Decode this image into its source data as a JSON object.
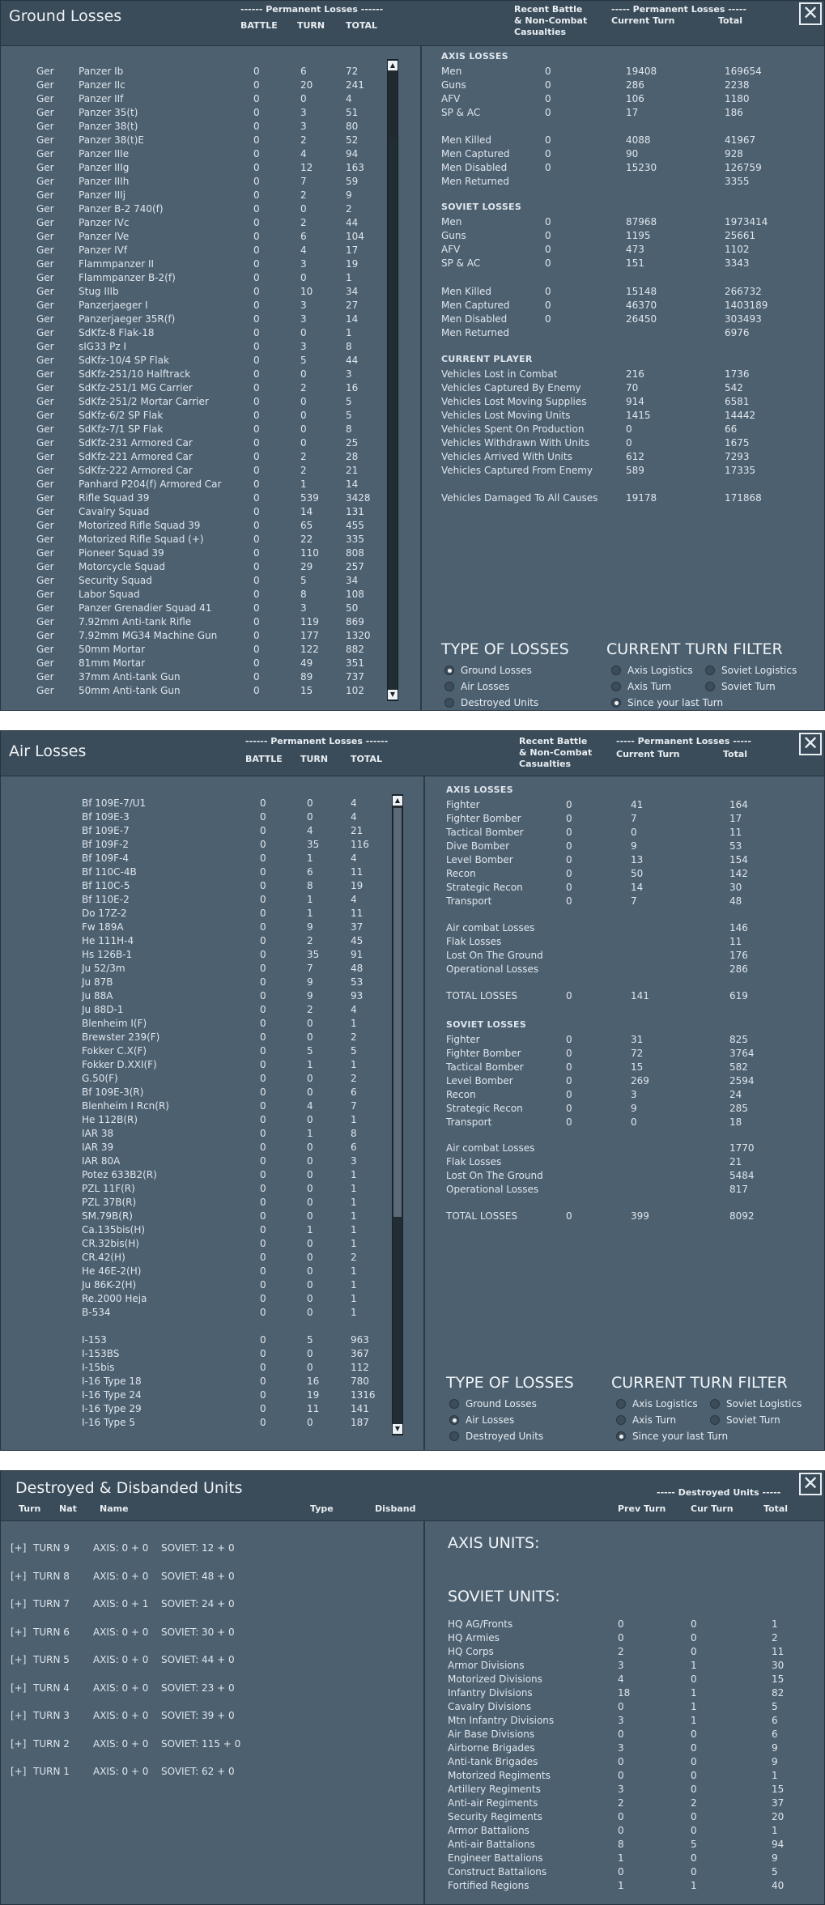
{
  "p1": {
    "title": "Ground Losses",
    "close": "✕",
    "hdr_perm": "------ Permanent Losses ------",
    "hdr_battle": "BATTLE",
    "hdr_turn": "TURN",
    "hdr_total": "TOTAL",
    "hdr_recent1": "Recent Battle",
    "hdr_recent2": "& Non-Combat",
    "hdr_recent3": "Casualties",
    "hdr_perm2": "----- Permanent Losses -----",
    "hdr_curturn": "Current Turn",
    "hdr_total2": "Total",
    "rows": [
      [
        "Ger",
        "Panzer Ib",
        "0",
        "6",
        "72"
      ],
      [
        "Ger",
        "Panzer IIc",
        "0",
        "20",
        "241"
      ],
      [
        "Ger",
        "Panzer IIf",
        "0",
        "0",
        "4"
      ],
      [
        "Ger",
        "Panzer 35(t)",
        "0",
        "3",
        "51"
      ],
      [
        "Ger",
        "Panzer 38(t)",
        "0",
        "3",
        "80"
      ],
      [
        "Ger",
        "Panzer 38(t)E",
        "0",
        "2",
        "52"
      ],
      [
        "Ger",
        "Panzer IIIe",
        "0",
        "4",
        "94"
      ],
      [
        "Ger",
        "Panzer IIIg",
        "0",
        "12",
        "163"
      ],
      [
        "Ger",
        "Panzer IIIh",
        "0",
        "7",
        "59"
      ],
      [
        "Ger",
        "Panzer IIIj",
        "0",
        "2",
        "9"
      ],
      [
        "Ger",
        "Panzer B-2 740(f)",
        "0",
        "0",
        "2"
      ],
      [
        "Ger",
        "Panzer IVc",
        "0",
        "2",
        "44"
      ],
      [
        "Ger",
        "Panzer IVe",
        "0",
        "6",
        "104"
      ],
      [
        "Ger",
        "Panzer IVf",
        "0",
        "4",
        "17"
      ],
      [
        "Ger",
        "Flammpanzer II",
        "0",
        "3",
        "19"
      ],
      [
        "Ger",
        "Flammpanzer B-2(f)",
        "0",
        "0",
        "1"
      ],
      [
        "Ger",
        "Stug IIIb",
        "0",
        "10",
        "34"
      ],
      [
        "Ger",
        "Panzerjaeger I",
        "0",
        "3",
        "27"
      ],
      [
        "Ger",
        "Panzerjaeger 35R(f)",
        "0",
        "3",
        "14"
      ],
      [
        "Ger",
        "SdKfz-8 Flak-18",
        "0",
        "0",
        "1"
      ],
      [
        "Ger",
        "sIG33 Pz I",
        "0",
        "3",
        "8"
      ],
      [
        "Ger",
        "SdKfz-10/4 SP Flak",
        "0",
        "5",
        "44"
      ],
      [
        "Ger",
        "SdKfz-251/10 Halftrack",
        "0",
        "0",
        "3"
      ],
      [
        "Ger",
        "SdKfz-251/1 MG Carrier",
        "0",
        "2",
        "16"
      ],
      [
        "Ger",
        "SdKfz-251/2 Mortar Carrier",
        "0",
        "0",
        "5"
      ],
      [
        "Ger",
        "SdKfz-6/2 SP Flak",
        "0",
        "0",
        "5"
      ],
      [
        "Ger",
        "SdKfz-7/1 SP Flak",
        "0",
        "0",
        "8"
      ],
      [
        "Ger",
        "SdKfz-231 Armored Car",
        "0",
        "0",
        "25"
      ],
      [
        "Ger",
        "SdKfz-221 Armored Car",
        "0",
        "2",
        "28"
      ],
      [
        "Ger",
        "SdKfz-222 Armored Car",
        "0",
        "2",
        "21"
      ],
      [
        "Ger",
        "Panhard P204(f) Armored Car",
        "0",
        "1",
        "14"
      ],
      [
        "Ger",
        "Rifle Squad 39",
        "0",
        "539",
        "3428"
      ],
      [
        "Ger",
        "Cavalry Squad",
        "0",
        "14",
        "131"
      ],
      [
        "Ger",
        "Motorized Rifle Squad 39",
        "0",
        "65",
        "455"
      ],
      [
        "Ger",
        "Motorized Rifle Squad (+)",
        "0",
        "22",
        "335"
      ],
      [
        "Ger",
        "Pioneer Squad 39",
        "0",
        "110",
        "808"
      ],
      [
        "Ger",
        "Motorcycle Squad",
        "0",
        "29",
        "257"
      ],
      [
        "Ger",
        "Security Squad",
        "0",
        "5",
        "34"
      ],
      [
        "Ger",
        "Labor Squad",
        "0",
        "8",
        "108"
      ],
      [
        "Ger",
        "Panzer Grenadier Squad 41",
        "0",
        "3",
        "50"
      ],
      [
        "Ger",
        "7.92mm Anti-tank Rifle",
        "0",
        "119",
        "869"
      ],
      [
        "Ger",
        "7.92mm MG34 Machine Gun",
        "0",
        "177",
        "1320"
      ],
      [
        "Ger",
        "50mm Mortar",
        "0",
        "122",
        "882"
      ],
      [
        "Ger",
        "81mm Mortar",
        "0",
        "49",
        "351"
      ],
      [
        "Ger",
        "37mm Anti-tank Gun",
        "0",
        "89",
        "737"
      ],
      [
        "Ger",
        "50mm Anti-tank Gun",
        "0",
        "15",
        "102"
      ]
    ],
    "axis_title": "AXIS LOSSES",
    "axis_rows": [
      [
        "Men",
        "0",
        "19408",
        "169654"
      ],
      [
        "Guns",
        "0",
        "286",
        "2238"
      ],
      [
        "AFV",
        "0",
        "106",
        "1180"
      ],
      [
        "SP & AC",
        "0",
        "17",
        "186"
      ]
    ],
    "axis_rows2": [
      [
        "Men Killed",
        "0",
        "4088",
        "41967"
      ],
      [
        "Men Captured",
        "0",
        "90",
        "928"
      ],
      [
        "Men Disabled",
        "0",
        "15230",
        "126759"
      ],
      [
        "Men Returned",
        "",
        "",
        "3355"
      ]
    ],
    "sov_title": "SOVIET LOSSES",
    "sov_rows": [
      [
        "Men",
        "0",
        "87968",
        "1973414"
      ],
      [
        "Guns",
        "0",
        "1195",
        "25661"
      ],
      [
        "AFV",
        "0",
        "473",
        "1102"
      ],
      [
        "SP & AC",
        "0",
        "151",
        "3343"
      ]
    ],
    "sov_rows2": [
      [
        "Men Killed",
        "0",
        "15148",
        "266732"
      ],
      [
        "Men Captured",
        "0",
        "46370",
        "1403189"
      ],
      [
        "Men Disabled",
        "0",
        "26450",
        "303493"
      ],
      [
        "Men Returned",
        "",
        "",
        "6976"
      ]
    ],
    "cp_title": "CURRENT PLAYER",
    "cp_rows": [
      [
        "Vehicles Lost in Combat",
        "216",
        "1736"
      ],
      [
        "Vehicles Captured By Enemy",
        "70",
        "542"
      ],
      [
        "Vehicles Lost Moving Supplies",
        "914",
        "6581"
      ],
      [
        "Vehicles Lost Moving Units",
        "1415",
        "14442"
      ],
      [
        "Vehicles Spent On Production",
        "0",
        "66"
      ],
      [
        "Vehicles Withdrawn With Units",
        "0",
        "1675"
      ],
      [
        "Vehicles Arrived With Units",
        "612",
        "7293"
      ],
      [
        "Vehicles Captured From Enemy",
        "589",
        "17335"
      ]
    ],
    "cp_dmg": [
      "Vehicles Damaged To All Causes",
      "19178",
      "171868"
    ],
    "tol": "TYPE OF LOSSES",
    "ctf": "CURRENT TURN FILTER",
    "opts_l": [
      "Ground Losses",
      "Air Losses",
      "Destroyed Units"
    ],
    "opts_r": [
      "Axis Logistics",
      "Soviet Logistics",
      "Axis Turn",
      "Soviet Turn",
      "Since your last Turn"
    ]
  },
  "p2": {
    "title": "Air Losses",
    "close": "✕",
    "hdr_perm": "------ Permanent Losses ------",
    "hdr_battle": "BATTLE",
    "hdr_turn": "TURN",
    "hdr_total": "TOTAL",
    "hdr_recent1": "Recent Battle",
    "hdr_recent2": "& Non-Combat",
    "hdr_recent3": "Casualties",
    "hdr_perm2": "----- Permanent Losses -----",
    "hdr_curturn": "Current Turn",
    "hdr_total2": "Total",
    "rows": [
      [
        "Bf 109E-7/U1",
        "0",
        "0",
        "4"
      ],
      [
        "Bf 109E-3",
        "0",
        "0",
        "4"
      ],
      [
        "Bf 109E-7",
        "0",
        "4",
        "21"
      ],
      [
        "Bf 109F-2",
        "0",
        "35",
        "116"
      ],
      [
        "Bf 109F-4",
        "0",
        "1",
        "4"
      ],
      [
        "Bf 110C-4B",
        "0",
        "6",
        "11"
      ],
      [
        "Bf 110C-5",
        "0",
        "8",
        "19"
      ],
      [
        "Bf 110E-2",
        "0",
        "1",
        "4"
      ],
      [
        "Do 17Z-2",
        "0",
        "1",
        "11"
      ],
      [
        "Fw 189A",
        "0",
        "9",
        "37"
      ],
      [
        "He 111H-4",
        "0",
        "2",
        "45"
      ],
      [
        "Hs 126B-1",
        "0",
        "35",
        "91"
      ],
      [
        "Ju 52/3m",
        "0",
        "7",
        "48"
      ],
      [
        "Ju 87B",
        "0",
        "9",
        "53"
      ],
      [
        "Ju 88A",
        "0",
        "9",
        "93"
      ],
      [
        "Ju 88D-1",
        "0",
        "2",
        "4"
      ],
      [
        "Blenheim I(F)",
        "0",
        "0",
        "1"
      ],
      [
        "Brewster 239(F)",
        "0",
        "0",
        "2"
      ],
      [
        "Fokker C.X(F)",
        "0",
        "5",
        "5"
      ],
      [
        "Fokker D.XXI(F)",
        "0",
        "1",
        "1"
      ],
      [
        "G.50(F)",
        "0",
        "0",
        "2"
      ],
      [
        "Bf 109E-3(R)",
        "0",
        "0",
        "6"
      ],
      [
        "Blenheim I Rcn(R)",
        "0",
        "4",
        "7"
      ],
      [
        "He 112B(R)",
        "0",
        "0",
        "1"
      ],
      [
        "IAR 38",
        "0",
        "1",
        "8"
      ],
      [
        "IAR 39",
        "0",
        "0",
        "6"
      ],
      [
        "IAR 80A",
        "0",
        "0",
        "3"
      ],
      [
        "Potez 633B2(R)",
        "0",
        "0",
        "1"
      ],
      [
        "PZL 11F(R)",
        "0",
        "0",
        "1"
      ],
      [
        "PZL 37B(R)",
        "0",
        "0",
        "1"
      ],
      [
        "SM.79B(R)",
        "0",
        "0",
        "1"
      ],
      [
        "Ca.135bis(H)",
        "0",
        "1",
        "1"
      ],
      [
        "CR.32bis(H)",
        "0",
        "0",
        "1"
      ],
      [
        "CR.42(H)",
        "0",
        "0",
        "2"
      ],
      [
        "He 46E-2(H)",
        "0",
        "0",
        "1"
      ],
      [
        "Ju 86K-2(H)",
        "0",
        "0",
        "1"
      ],
      [
        "Re.2000 Heja",
        "0",
        "0",
        "1"
      ],
      [
        "B-534",
        "0",
        "0",
        "1"
      ],
      [
        "",
        "",
        "",
        ""
      ],
      [
        "I-153",
        "0",
        "5",
        "963"
      ],
      [
        "I-153BS",
        "0",
        "0",
        "367"
      ],
      [
        "I-15bis",
        "0",
        "0",
        "112"
      ],
      [
        "I-16 Type 18",
        "0",
        "16",
        "780"
      ],
      [
        "I-16 Type 24",
        "0",
        "19",
        "1316"
      ],
      [
        "I-16 Type 29",
        "0",
        "11",
        "141"
      ],
      [
        "I-16 Type 5",
        "0",
        "0",
        "187"
      ]
    ],
    "axis_title": "AXIS LOSSES",
    "axis_rows": [
      [
        "Fighter",
        "0",
        "41",
        "164"
      ],
      [
        "Fighter Bomber",
        "0",
        "7",
        "17"
      ],
      [
        "Tactical Bomber",
        "0",
        "0",
        "11"
      ],
      [
        "Dive Bomber",
        "0",
        "9",
        "53"
      ],
      [
        "Level Bomber",
        "0",
        "13",
        "154"
      ],
      [
        "Recon",
        "0",
        "50",
        "142"
      ],
      [
        "Strategic Recon",
        "0",
        "14",
        "30"
      ],
      [
        "Transport",
        "0",
        "7",
        "48"
      ]
    ],
    "axis_rows2": [
      [
        "Air combat Losses",
        "146"
      ],
      [
        "Flak Losses",
        "11"
      ],
      [
        "Lost On The Ground",
        "176"
      ],
      [
        "Operational Losses",
        "286"
      ]
    ],
    "axis_total": [
      "TOTAL LOSSES",
      "0",
      "141",
      "619"
    ],
    "sov_title": "SOVIET LOSSES",
    "sov_rows": [
      [
        "Fighter",
        "0",
        "31",
        "825"
      ],
      [
        "Fighter Bomber",
        "0",
        "72",
        "3764"
      ],
      [
        "Tactical Bomber",
        "0",
        "15",
        "582"
      ],
      [
        "Level Bomber",
        "0",
        "269",
        "2594"
      ],
      [
        "Recon",
        "0",
        "3",
        "24"
      ],
      [
        "Strategic Recon",
        "0",
        "9",
        "285"
      ],
      [
        "Transport",
        "0",
        "0",
        "18"
      ]
    ],
    "sov_rows2": [
      [
        "Air combat Losses",
        "1770"
      ],
      [
        "Flak Losses",
        "21"
      ],
      [
        "Lost On The Ground",
        "5484"
      ],
      [
        "Operational Losses",
        "817"
      ]
    ],
    "sov_total": [
      "TOTAL LOSSES",
      "0",
      "399",
      "8092"
    ],
    "tol": "TYPE OF LOSSES",
    "ctf": "CURRENT TURN FILTER",
    "opts_l": [
      "Ground Losses",
      "Air Losses",
      "Destroyed Units"
    ],
    "opts_r": [
      "Axis Logistics",
      "Soviet Logistics",
      "Axis Turn",
      "Soviet Turn",
      "Since your last Turn"
    ]
  },
  "p3": {
    "title": "Destroyed & Disbanded Units",
    "close": "✕",
    "h_turn": "Turn",
    "h_nat": "Nat",
    "h_name": "Name",
    "h_type": "Type",
    "h_disband": "Disband",
    "h_destroyed": "----- Destroyed Units -----",
    "h_prev": "Prev Turn",
    "h_cur": "Cur Turn",
    "h_total": "Total",
    "turns": [
      [
        "[+]",
        "TURN 9",
        "AXIS: 0 + 0",
        "SOVIET: 12 + 0"
      ],
      [
        "[+]",
        "TURN 8",
        "AXIS: 0 + 0",
        "SOVIET: 48 + 0"
      ],
      [
        "[+]",
        "TURN 7",
        "AXIS: 0 + 1",
        "SOVIET: 24 + 0"
      ],
      [
        "[+]",
        "TURN 6",
        "AXIS: 0 + 0",
        "SOVIET: 30 + 0"
      ],
      [
        "[+]",
        "TURN 5",
        "AXIS: 0 + 0",
        "SOVIET: 44 + 0"
      ],
      [
        "[+]",
        "TURN 4",
        "AXIS: 0 + 0",
        "SOVIET: 23 + 0"
      ],
      [
        "[+]",
        "TURN 3",
        "AXIS: 0 + 0",
        "SOVIET: 39 + 0"
      ],
      [
        "[+]",
        "TURN 2",
        "AXIS: 0 + 0",
        "SOVIET: 115 + 0"
      ],
      [
        "[+]",
        "TURN 1",
        "AXIS: 0 + 0",
        "SOVIET: 62 + 0"
      ]
    ],
    "axis_units": "AXIS UNITS:",
    "sov_units": "SOVIET UNITS:",
    "sov_rows": [
      [
        "HQ AG/Fronts",
        "0",
        "0",
        "1"
      ],
      [
        "HQ Armies",
        "0",
        "0",
        "2"
      ],
      [
        "HQ Corps",
        "2",
        "0",
        "11"
      ],
      [
        "Armor Divisions",
        "3",
        "1",
        "30"
      ],
      [
        "Motorized Divisions",
        "4",
        "0",
        "15"
      ],
      [
        "Infantry Divisions",
        "18",
        "1",
        "82"
      ],
      [
        "Cavalry Divisions",
        "0",
        "1",
        "5"
      ],
      [
        "Mtn Infantry Divisions",
        "3",
        "1",
        "6"
      ],
      [
        "Air Base Divisions",
        "0",
        "0",
        "6"
      ],
      [
        "Airborne Brigades",
        "3",
        "0",
        "9"
      ],
      [
        "Anti-tank Brigades",
        "0",
        "0",
        "9"
      ],
      [
        "Motorized Regiments",
        "0",
        "0",
        "1"
      ],
      [
        "Artillery Regiments",
        "3",
        "0",
        "15"
      ],
      [
        "Anti-air Regiments",
        "2",
        "2",
        "37"
      ],
      [
        "Security Regiments",
        "0",
        "0",
        "20"
      ],
      [
        "Armor Battalions",
        "0",
        "0",
        "1"
      ],
      [
        "Anti-air Battalions",
        "8",
        "5",
        "94"
      ],
      [
        "Engineer Battalions",
        "1",
        "0",
        "9"
      ],
      [
        "Construct Battalions",
        "0",
        "0",
        "5"
      ],
      [
        "Fortified Regions",
        "1",
        "1",
        "40"
      ]
    ]
  }
}
